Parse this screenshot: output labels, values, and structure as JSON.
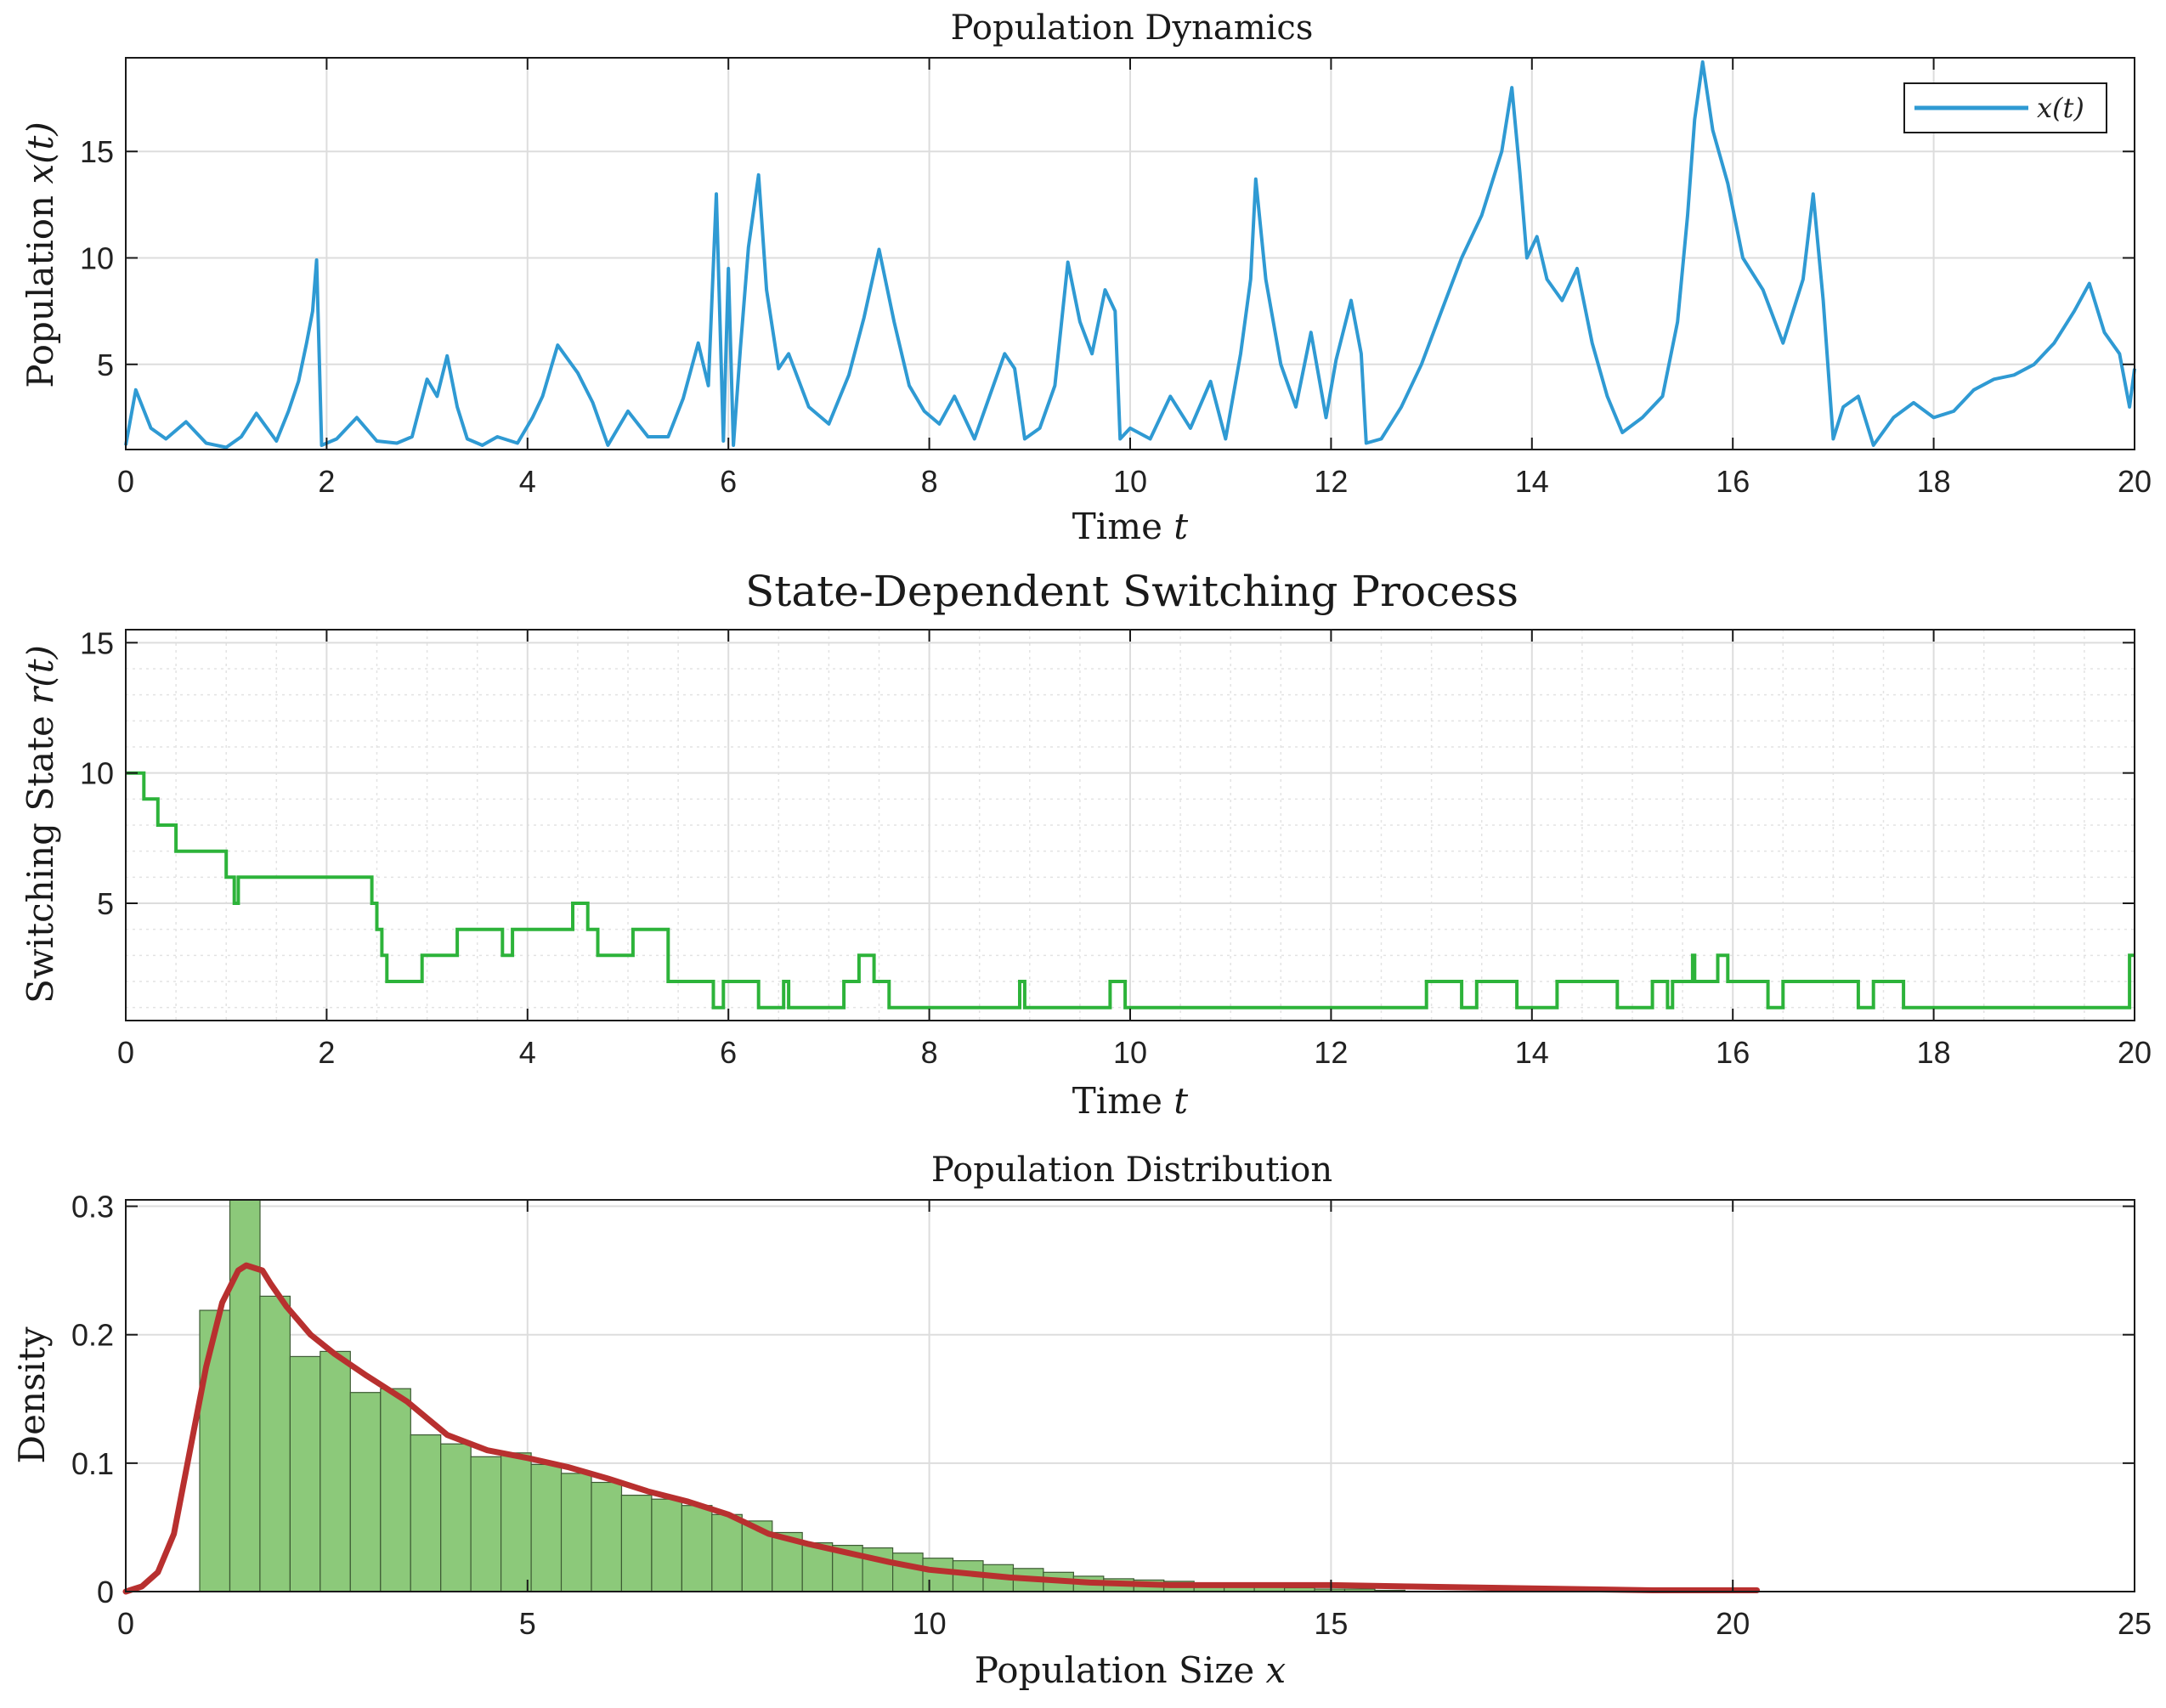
{
  "colors": {
    "population_line": "#2f9ad3",
    "switching_line": "#2db33a",
    "hist_fill": "#8cc97a",
    "hist_edge": "#3c5a33",
    "density_line": "#b8302f",
    "grid": "#dddddd",
    "axis": "#1a1a1a"
  },
  "chart_data": [
    {
      "id": "population-dynamics",
      "type": "line",
      "title": "Population Dynamics",
      "xlabel": "Time",
      "xlabel_var": "t",
      "ylabel": "Population",
      "ylabel_var": "x(t)",
      "xlim": [
        0,
        20
      ],
      "ylim": [
        1,
        19.4
      ],
      "xticks": [
        0,
        2,
        4,
        6,
        8,
        10,
        12,
        14,
        16,
        18,
        20
      ],
      "yticks": [
        5,
        10,
        15
      ],
      "grid": true,
      "legend": {
        "position": "top-right",
        "entries": [
          "x(t)"
        ]
      },
      "series": [
        {
          "name": "x(t)",
          "x": [
            0,
            0.1,
            0.25,
            0.4,
            0.6,
            0.8,
            1.0,
            1.15,
            1.3,
            1.5,
            1.62,
            1.72,
            1.8,
            1.86,
            1.9,
            1.95,
            2.1,
            2.3,
            2.5,
            2.7,
            2.85,
            3.0,
            3.1,
            3.2,
            3.3,
            3.4,
            3.55,
            3.7,
            3.9,
            4.05,
            4.15,
            4.3,
            4.5,
            4.65,
            4.8,
            5.0,
            5.2,
            5.4,
            5.55,
            5.7,
            5.8,
            5.88,
            5.95,
            6.0,
            6.05,
            6.12,
            6.2,
            6.3,
            6.38,
            6.5,
            6.6,
            6.8,
            7.0,
            7.2,
            7.35,
            7.5,
            7.65,
            7.8,
            7.95,
            8.1,
            8.25,
            8.45,
            8.6,
            8.75,
            8.85,
            8.95,
            9.1,
            9.25,
            9.38,
            9.5,
            9.62,
            9.75,
            9.85,
            9.9,
            10.0,
            10.2,
            10.4,
            10.6,
            10.8,
            10.95,
            11.1,
            11.2,
            11.25,
            11.35,
            11.5,
            11.65,
            11.8,
            11.95,
            12.05,
            12.2,
            12.3,
            12.35,
            12.5,
            12.7,
            12.9,
            13.1,
            13.3,
            13.5,
            13.7,
            13.8,
            13.88,
            13.95,
            14.05,
            14.15,
            14.3,
            14.45,
            14.6,
            14.75,
            14.9,
            15.1,
            15.3,
            15.45,
            15.55,
            15.62,
            15.7,
            15.8,
            15.95,
            16.1,
            16.3,
            16.5,
            16.7,
            16.8,
            16.9,
            17.0,
            17.1,
            17.25,
            17.4,
            17.6,
            17.8,
            18.0,
            18.2,
            18.4,
            18.6,
            18.8,
            19.0,
            19.2,
            19.4,
            19.55,
            19.7,
            19.85,
            19.95,
            20.0
          ],
          "y": [
            1.2,
            3.8,
            2.0,
            1.5,
            2.3,
            1.3,
            1.1,
            1.6,
            2.7,
            1.4,
            2.8,
            4.2,
            6.0,
            7.5,
            9.9,
            1.2,
            1.5,
            2.5,
            1.4,
            1.3,
            1.6,
            4.3,
            3.5,
            5.4,
            3.0,
            1.5,
            1.2,
            1.6,
            1.3,
            2.5,
            3.5,
            5.9,
            4.6,
            3.2,
            1.2,
            2.8,
            1.6,
            1.6,
            3.4,
            6.0,
            4.0,
            13.0,
            1.4,
            9.5,
            1.2,
            5.8,
            10.5,
            13.9,
            8.5,
            4.8,
            5.5,
            3.0,
            2.2,
            4.5,
            7.2,
            10.4,
            7.0,
            4.0,
            2.8,
            2.2,
            3.5,
            1.5,
            3.5,
            5.5,
            4.8,
            1.5,
            2.0,
            4.0,
            9.8,
            7.0,
            5.5,
            8.5,
            7.5,
            1.5,
            2.0,
            1.5,
            3.5,
            2.0,
            4.2,
            1.5,
            5.5,
            9.0,
            13.7,
            9.0,
            5.0,
            3.0,
            6.5,
            2.5,
            5.2,
            8.0,
            5.5,
            1.3,
            1.5,
            3.0,
            5.0,
            7.5,
            10.0,
            12.0,
            15.0,
            18.0,
            14.0,
            10.0,
            11.0,
            9.0,
            8.0,
            9.5,
            6.0,
            3.5,
            1.8,
            2.5,
            3.5,
            7.0,
            12.0,
            16.5,
            19.2,
            16.0,
            13.5,
            10.0,
            8.5,
            6.0,
            9.0,
            13.0,
            8.0,
            1.5,
            3.0,
            3.5,
            1.2,
            2.5,
            3.2,
            2.5,
            2.8,
            3.8,
            4.3,
            4.5,
            5.0,
            6.0,
            7.5,
            8.8,
            6.5,
            5.5,
            3.0,
            4.8
          ]
        }
      ]
    },
    {
      "id": "switching-process",
      "type": "line",
      "title": "State-Dependent Switching Process",
      "xlabel": "Time",
      "xlabel_var": "t",
      "ylabel": "Switching State",
      "ylabel_var": "r(t)",
      "xlim": [
        0,
        20
      ],
      "ylim": [
        0.5,
        15.5
      ],
      "xticks": [
        0,
        2,
        4,
        6,
        8,
        10,
        12,
        14,
        16,
        18,
        20
      ],
      "yticks": [
        5,
        10,
        15
      ],
      "grid": true,
      "step": true,
      "series": [
        {
          "name": "r(t)",
          "x": [
            0,
            0.18,
            0.32,
            0.5,
            1.0,
            1.08,
            1.12,
            1.15,
            2.45,
            2.5,
            2.55,
            2.6,
            2.65,
            2.95,
            3.3,
            3.75,
            3.85,
            4.45,
            4.6,
            4.7,
            5.05,
            5.4,
            5.85,
            5.95,
            6.3,
            6.55,
            6.6,
            6.65,
            7.15,
            7.3,
            7.45,
            7.6,
            8.9,
            8.95,
            9.8,
            9.95,
            12.95,
            13.3,
            13.45,
            13.85,
            14.25,
            14.85,
            15.2,
            15.35,
            15.4,
            15.45,
            15.6,
            15.62,
            15.85,
            15.95,
            16.35,
            16.5,
            17.25,
            17.4,
            17.7,
            19.95,
            20.0
          ],
          "y": [
            10,
            9,
            8,
            7,
            6,
            5,
            6,
            6,
            5,
            4,
            3,
            2,
            2,
            3,
            4,
            3,
            4,
            5,
            4,
            3,
            4,
            2,
            1,
            2,
            1,
            2,
            1,
            1,
            2,
            3,
            2,
            1,
            2,
            1,
            2,
            1,
            2,
            1,
            2,
            1,
            2,
            1,
            2,
            1,
            2,
            2,
            3,
            2,
            3,
            2,
            1,
            2,
            1,
            2,
            1,
            3,
            3
          ]
        }
      ]
    },
    {
      "id": "population-distribution",
      "type": "bar",
      "title": "Population Distribution",
      "xlabel": "Population Size",
      "xlabel_var": "x",
      "ylabel": "Density",
      "xlim": [
        0,
        25
      ],
      "ylim": [
        0,
        0.305
      ],
      "xticks": [
        0,
        5,
        10,
        15,
        20,
        25
      ],
      "yticks": [
        0,
        0.1,
        0.2,
        0.3
      ],
      "ytick_labels": [
        "0",
        "0.1",
        "0.2",
        "0.3"
      ],
      "grid": true,
      "histogram": {
        "bin_start": 0.92,
        "bin_width": 0.375,
        "densities": [
          0.219,
          0.305,
          0.23,
          0.183,
          0.187,
          0.155,
          0.158,
          0.122,
          0.115,
          0.105,
          0.108,
          0.099,
          0.092,
          0.085,
          0.075,
          0.072,
          0.067,
          0.06,
          0.055,
          0.046,
          0.038,
          0.036,
          0.034,
          0.03,
          0.026,
          0.024,
          0.021,
          0.018,
          0.015,
          0.012,
          0.01,
          0.009,
          0.008,
          0.006,
          0.005,
          0.004,
          0.003,
          0.002,
          0.002,
          0.001
        ]
      },
      "density_curve": {
        "x": [
          0,
          0.2,
          0.4,
          0.6,
          0.8,
          1.0,
          1.2,
          1.4,
          1.5,
          1.6,
          1.7,
          1.8,
          2.0,
          2.3,
          2.6,
          3.0,
          3.5,
          4.0,
          4.5,
          5.0,
          5.5,
          6.0,
          6.5,
          7.0,
          7.5,
          8.0,
          8.5,
          9.0,
          9.5,
          10.0,
          11.0,
          12.0,
          13.0,
          14.0,
          15.0,
          16.0,
          17.0,
          18.0,
          19.0,
          20.0,
          20.3
        ],
        "y": [
          0.0,
          0.004,
          0.015,
          0.045,
          0.11,
          0.175,
          0.225,
          0.25,
          0.254,
          0.252,
          0.25,
          0.24,
          0.222,
          0.2,
          0.185,
          0.168,
          0.148,
          0.122,
          0.11,
          0.104,
          0.097,
          0.088,
          0.078,
          0.07,
          0.06,
          0.045,
          0.037,
          0.03,
          0.023,
          0.017,
          0.011,
          0.007,
          0.005,
          0.005,
          0.005,
          0.004,
          0.003,
          0.002,
          0.001,
          0.001,
          0.001
        ]
      }
    }
  ]
}
